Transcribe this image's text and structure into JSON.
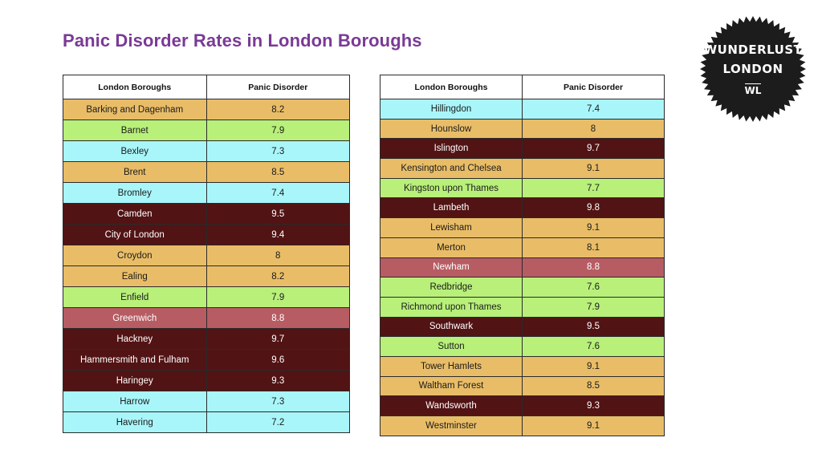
{
  "title": "Panic Disorder Rates in London Boroughs",
  "logo": {
    "line1": "WUNDERLUST",
    "line2": "LONDON",
    "line3": "WL"
  },
  "colors": {
    "title": "#7a3a96",
    "band_7.2_7.4": "#a9f6fa",
    "band_7.6_7.9": "#b8f07a",
    "band_8.0_8.5_and_9.1": "#e9bd67",
    "band_8.8": "#b75c63",
    "band_9.3_9.8": "#521314"
  },
  "chart_data": {
    "type": "table",
    "columns": [
      "London Boroughs",
      "Panic Disorder"
    ],
    "tables": [
      {
        "rows": [
          [
            "Barking and Dagenham",
            "8.2"
          ],
          [
            "Barnet",
            "7.9"
          ],
          [
            "Bexley",
            "7.3"
          ],
          [
            "Brent",
            "8.5"
          ],
          [
            "Bromley",
            "7.4"
          ],
          [
            "Camden",
            "9.5"
          ],
          [
            "City of London",
            "9.4"
          ],
          [
            "Croydon",
            "8"
          ],
          [
            "Ealing",
            "8.2"
          ],
          [
            "Enfield",
            "7.9"
          ],
          [
            "Greenwich",
            "8.8"
          ],
          [
            "Hackney",
            "9.7"
          ],
          [
            "Hammersmith and Fulham",
            "9.6"
          ],
          [
            "Haringey",
            "9.3"
          ],
          [
            "Harrow",
            "7.3"
          ],
          [
            "Havering",
            "7.2"
          ]
        ]
      },
      {
        "rows": [
          [
            "Hillingdon",
            "7.4"
          ],
          [
            "Hounslow",
            "8"
          ],
          [
            "Islington",
            "9.7"
          ],
          [
            "Kensington and Chelsea",
            "9.1"
          ],
          [
            "Kingston upon Thames",
            "7.7"
          ],
          [
            "Lambeth",
            "9.8"
          ],
          [
            "Lewisham",
            "9.1"
          ],
          [
            "Merton",
            "8.1"
          ],
          [
            "Newham",
            "8.8"
          ],
          [
            "Redbridge",
            "7.6"
          ],
          [
            "Richmond upon Thames",
            "7.9"
          ],
          [
            "Southwark",
            "9.5"
          ],
          [
            "Sutton",
            "7.6"
          ],
          [
            "Tower Hamlets",
            "9.1"
          ],
          [
            "Waltham Forest",
            "8.5"
          ],
          [
            "Wandsworth",
            "9.3"
          ],
          [
            "Westminster",
            "9.1"
          ]
        ]
      }
    ]
  }
}
